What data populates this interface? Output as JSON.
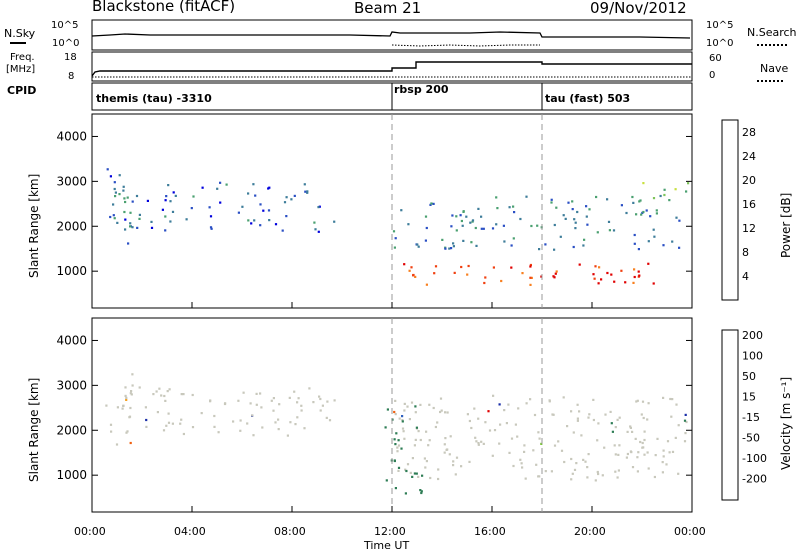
{
  "header": {
    "station": "Blackstone (fitACF)",
    "beam": "Beam 21",
    "date": "09/Nov/2012"
  },
  "summary_panels": {
    "nsky_label": "N.Sky",
    "nsky_tick_top": "10^5",
    "nsky_tick_bottom": "10^0",
    "nsearch_label": "N.Search",
    "nsearch_tick_top": "10^5",
    "nsearch_tick_bottom": "10^0",
    "freq_label": "Freq.",
    "freq_unit": "[MHz]",
    "freq_ticks": [
      "18",
      "8"
    ],
    "nave_label": "Nave",
    "nave_ticks": [
      "60",
      "0"
    ],
    "cpid_label": "CPID",
    "cpid_segments": [
      {
        "label": "themis (tau) -3310",
        "start_hour": 0,
        "end_hour": 12
      },
      {
        "label": "rbsp 200",
        "start_hour": 12,
        "end_hour": 18
      },
      {
        "label": "tau (fast) 503",
        "start_hour": 18,
        "end_hour": 24
      }
    ]
  },
  "chart_data": [
    {
      "type": "heatmap",
      "parameter": "power",
      "xlabel": "Time UT",
      "ylabel": "Slant Range [km]",
      "xlim": [
        0,
        24
      ],
      "ylim": [
        180,
        4500
      ],
      "x_ticks": [
        "00:00",
        "04:00",
        "08:00",
        "12:00",
        "16:00",
        "20:00",
        "00:00"
      ],
      "y_ticks": [
        1000,
        2000,
        3000,
        4000
      ],
      "colorbar": {
        "label": "Power [dB]",
        "ticks": [
          4,
          8,
          12,
          16,
          20,
          24,
          28
        ],
        "range": [
          0,
          30
        ],
        "colors": [
          "#0000dd",
          "#2a4fc4",
          "#3e7d9a",
          "#4aa070",
          "#7ec45a",
          "#c8e040",
          "#f5e020",
          "#f8b020",
          "#f88020",
          "#f04010",
          "#e00000"
        ]
      },
      "regions": [
        {
          "name": "early scatter",
          "x": [
            0.5,
            1.6
          ],
          "y": [
            1500,
            3300
          ],
          "power": 6
        },
        {
          "name": "pre-noon echo band",
          "x": [
            1.2,
            9.7
          ],
          "y": [
            1900,
            3000
          ],
          "power": 5
        },
        {
          "name": "afternoon main band",
          "x": [
            12,
            23.5
          ],
          "y": [
            1500,
            2700
          ],
          "power": 7
        },
        {
          "name": "afternoon high-power band",
          "x": [
            12.3,
            22.8
          ],
          "y": [
            700,
            1200
          ],
          "power": 26
        },
        {
          "name": "late evening echoes",
          "x": [
            22,
            24
          ],
          "y": [
            2600,
            3000
          ],
          "power": 14
        }
      ]
    },
    {
      "type": "heatmap",
      "parameter": "velocity",
      "xlabel": "Time UT",
      "ylabel": "Slant Range [km]",
      "xlim": [
        0,
        24
      ],
      "ylim": [
        180,
        4500
      ],
      "x_ticks": [
        "00:00",
        "04:00",
        "08:00",
        "12:00",
        "16:00",
        "20:00",
        "00:00"
      ],
      "y_ticks": [
        1000,
        2000,
        3000,
        4000
      ],
      "colorbar": {
        "label": "Velocity [m s⁻¹]",
        "ticks": [
          200,
          100,
          50,
          15,
          -15,
          -50,
          -100,
          -200
        ],
        "range": [
          -250,
          250
        ],
        "colors": [
          "#1a2ea8",
          "#2d5fbf",
          "#2e7d55",
          "#7cc43a",
          "#c8c8bc",
          "#f0d020",
          "#f5a020",
          "#f06010",
          "#e00000"
        ]
      },
      "regions": [
        {
          "name": "early scatter",
          "x": [
            0.5,
            1.6
          ],
          "y": [
            1500,
            3300
          ],
          "velocity": 0
        },
        {
          "name": "pre-noon ground scatter",
          "x": [
            1.2,
            9.7
          ],
          "y": [
            1900,
            3000
          ],
          "velocity": 0
        },
        {
          "name": "afternoon ground scatter",
          "x": [
            12,
            23.8
          ],
          "y": [
            900,
            2800
          ],
          "velocity": 0
        },
        {
          "name": "post-noon positive streak",
          "x": [
            11.6,
            13.2
          ],
          "y": [
            600,
            2600
          ],
          "velocity": 40
        }
      ]
    }
  ]
}
